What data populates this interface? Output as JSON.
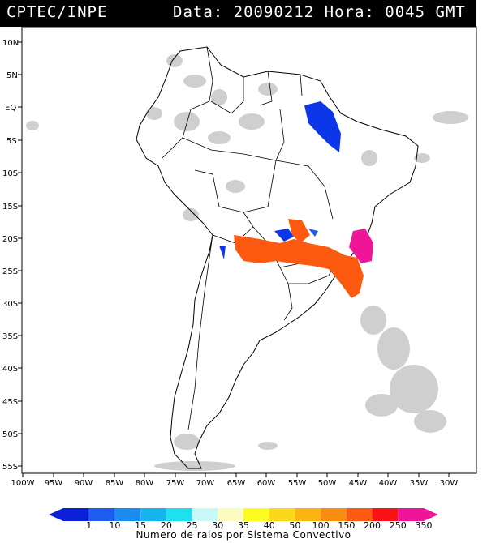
{
  "header": {
    "source": "CPTEC/INPE",
    "date_label": "Data:",
    "date_value": "20090212",
    "time_label": "Hora:",
    "time_value": "0045",
    "timezone": "GMT"
  },
  "map": {
    "lat_labels": [
      "10N",
      "5N",
      "EQ",
      "5S",
      "10S",
      "15S",
      "20S",
      "25S",
      "30S",
      "35S",
      "40S",
      "45S",
      "50S",
      "55S"
    ],
    "lon_labels": [
      "100W",
      "95W",
      "90W",
      "85W",
      "80W",
      "75W",
      "70W",
      "65W",
      "60W",
      "55W",
      "50W",
      "45W",
      "40W",
      "35W",
      "30W"
    ],
    "colors": {
      "land_outline": "#000000",
      "cloud": "#c8c8c8"
    }
  },
  "legend": {
    "values": [
      "1",
      "10",
      "15",
      "20",
      "25",
      "30",
      "35",
      "40",
      "50",
      "100",
      "150",
      "200",
      "250",
      "350"
    ],
    "colors": [
      "#0a1fd6",
      "#1e5cf0",
      "#1a8cf0",
      "#16b4f0",
      "#20e0f0",
      "#c8f8f8",
      "#fcfcc0",
      "#fcfc20",
      "#fcd81a",
      "#fcb414",
      "#fc8c10",
      "#fc5a10",
      "#f81414",
      "#f01498"
    ],
    "title": "Numero de raios por Sistema Convectivo"
  },
  "storms": {
    "colors": {
      "blue": "#0c36e8",
      "orange": "#fc5a10",
      "magenta": "#f01498"
    }
  }
}
